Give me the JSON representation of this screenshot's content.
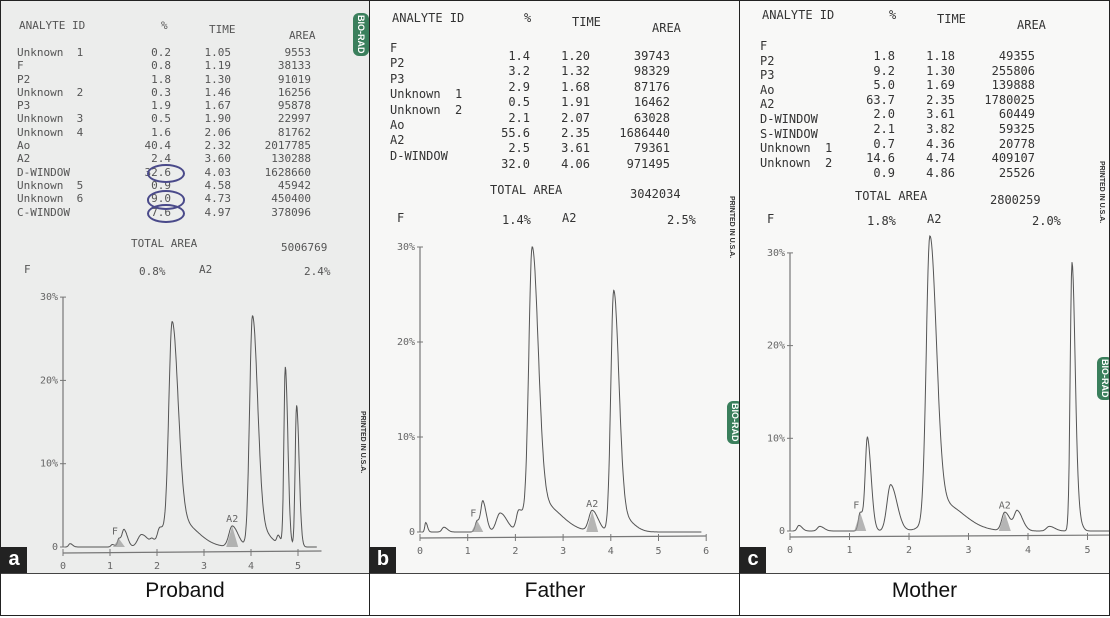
{
  "chart_data": [
    {
      "type": "line",
      "panel_letter": "a",
      "title": "Proband",
      "brand": "BIO-RAD",
      "printed": "PRINTED IN U.S.A.",
      "headers": {
        "analyte": "ANALYTE ID",
        "pct": "%",
        "time": "TIME",
        "area": "AREA"
      },
      "analyte_labels": [
        "Unknown  1",
        "F",
        "P2",
        "Unknown  2",
        "P3",
        "Unknown  3",
        "Unknown  4",
        "Ao",
        "A2",
        "D-WINDOW",
        "Unknown  5",
        "Unknown  6",
        "C-WINDOW"
      ],
      "rows": [
        {
          "pct": "0.2",
          "time": "1.05",
          "area": "9553"
        },
        {
          "pct": "0.8",
          "time": "1.19",
          "area": "38133"
        },
        {
          "pct": "1.8",
          "time": "1.30",
          "area": "91019"
        },
        {
          "pct": "0.3",
          "time": "1.46",
          "area": "16256"
        },
        {
          "pct": "1.9",
          "time": "1.67",
          "area": "95878"
        },
        {
          "pct": "0.5",
          "time": "1.90",
          "area": "22997"
        },
        {
          "pct": "1.6",
          "time": "2.06",
          "area": "81762"
        },
        {
          "pct": "40.4",
          "time": "2.32",
          "area": "2017785"
        },
        {
          "pct": "2.4",
          "time": "3.60",
          "area": "130288"
        },
        {
          "pct": "32.6",
          "time": "4.03",
          "area": "1628660"
        },
        {
          "pct": "0.9",
          "time": "4.58",
          "area": "45942"
        },
        {
          "pct": "9.0",
          "time": "4.73",
          "area": "450400"
        },
        {
          "pct": "7.6",
          "time": "4.97",
          "area": "378096"
        }
      ],
      "circled_rows": [
        9,
        11,
        12
      ],
      "total_area_label": "TOTAL AREA",
      "total_area": "5006769",
      "summary": {
        "f_label": "F",
        "f_value": "0.8%",
        "a2_label": "A2",
        "a2_value": "2.4%"
      },
      "y_ticks": [
        "0",
        "10%",
        "20%",
        "30%"
      ],
      "x_ticks": [
        "0",
        "1",
        "2",
        "3",
        "4",
        "5"
      ],
      "xlim": [
        0,
        5.5
      ],
      "ylim": [
        0,
        30
      ],
      "peak_labels": [
        {
          "text": "F",
          "time": 1.19
        },
        {
          "text": "A2",
          "time": 3.6
        }
      ],
      "peaks": [
        [
          0.15,
          0.4,
          0.03
        ],
        [
          1.05,
          0.3,
          0.03
        ],
        [
          1.19,
          1.0,
          0.03
        ],
        [
          1.3,
          2.0,
          0.04
        ],
        [
          1.67,
          1.5,
          0.08
        ],
        [
          1.9,
          0.6,
          0.04
        ],
        [
          2.06,
          2.0,
          0.05
        ],
        [
          2.32,
          25,
          0.07
        ],
        [
          2.5,
          3,
          0.2
        ],
        [
          3.6,
          2.5,
          0.07
        ],
        [
          4.03,
          27,
          0.06
        ],
        [
          4.2,
          2,
          0.12
        ],
        [
          4.58,
          1,
          0.03
        ],
        [
          4.73,
          21.5,
          0.03
        ],
        [
          4.97,
          17,
          0.03
        ]
      ]
    },
    {
      "type": "line",
      "panel_letter": "b",
      "title": "Father",
      "brand": "BIO-RAD",
      "printed": "PRINTED IN U.S.A.",
      "headers": {
        "analyte": "ANALYTE ID",
        "pct": "%",
        "time": "TIME",
        "area": "AREA"
      },
      "analyte_labels": [
        "F",
        "P2",
        "P3",
        "Unknown  1",
        "Unknown  2",
        "Ao",
        "A2",
        "D-WINDOW"
      ],
      "rows": [
        {
          "pct": "1.4",
          "time": "1.20",
          "area": "39743"
        },
        {
          "pct": "3.2",
          "time": "1.32",
          "area": "98329"
        },
        {
          "pct": "2.9",
          "time": "1.68",
          "area": "87176"
        },
        {
          "pct": "0.5",
          "time": "1.91",
          "area": "16462"
        },
        {
          "pct": "2.1",
          "time": "2.07",
          "area": "63028"
        },
        {
          "pct": "55.6",
          "time": "2.35",
          "area": "1686440"
        },
        {
          "pct": "2.5",
          "time": "3.61",
          "area": "79361"
        },
        {
          "pct": "32.0",
          "time": "4.06",
          "area": "971495"
        }
      ],
      "circled_rows": [],
      "total_area_label": "TOTAL AREA",
      "total_area": "3042034",
      "summary": {
        "f_label": "F",
        "f_value": "1.4%",
        "a2_label": "A2",
        "a2_value": "2.5%"
      },
      "y_ticks": [
        "0",
        "10%",
        "20%",
        "30%"
      ],
      "x_ticks": [
        "0",
        "1",
        "2",
        "3",
        "4",
        "5",
        "6"
      ],
      "xlim": [
        0,
        6
      ],
      "ylim": [
        0,
        30
      ],
      "peak_labels": [
        {
          "text": "F",
          "time": 1.2
        },
        {
          "text": "A2",
          "time": 3.61
        }
      ],
      "peaks": [
        [
          0.12,
          1.0,
          0.02
        ],
        [
          0.5,
          0.5,
          0.04
        ],
        [
          1.2,
          1.2,
          0.04
        ],
        [
          1.32,
          3.0,
          0.04
        ],
        [
          1.68,
          2.0,
          0.08
        ],
        [
          2.07,
          2.0,
          0.05
        ],
        [
          2.35,
          28,
          0.07
        ],
        [
          2.55,
          3,
          0.22
        ],
        [
          3.61,
          2.2,
          0.07
        ],
        [
          4.06,
          25,
          0.06
        ],
        [
          4.25,
          1.5,
          0.12
        ]
      ]
    },
    {
      "type": "line",
      "panel_letter": "c",
      "title": "Mother",
      "brand": "BIO-RAD",
      "printed": "PRINTED IN U.S.A.",
      "headers": {
        "analyte": "ANALYTE ID",
        "pct": "%",
        "time": "TIME",
        "area": "AREA"
      },
      "analyte_labels": [
        "F",
        "P2",
        "P3",
        "Ao",
        "A2",
        "D-WINDOW",
        "S-WINDOW",
        "Unknown  1",
        "Unknown  2"
      ],
      "rows": [
        {
          "pct": "1.8",
          "time": "1.18",
          "area": "49355"
        },
        {
          "pct": "9.2",
          "time": "1.30",
          "area": "255806"
        },
        {
          "pct": "5.0",
          "time": "1.69",
          "area": "139888"
        },
        {
          "pct": "63.7",
          "time": "2.35",
          "area": "1780025"
        },
        {
          "pct": "2.0",
          "time": "3.61",
          "area": "60449"
        },
        {
          "pct": "2.1",
          "time": "3.82",
          "area": "59325"
        },
        {
          "pct": "0.7",
          "time": "4.36",
          "area": "20778"
        },
        {
          "pct": "14.6",
          "time": "4.74",
          "area": "409107"
        },
        {
          "pct": "0.9",
          "time": "4.86",
          "area": "25526"
        }
      ],
      "circled_rows": [],
      "total_area_label": "TOTAL AREA",
      "total_area": "2800259",
      "summary": {
        "f_label": "F",
        "f_value": "1.8%",
        "a2_label": "A2",
        "a2_value": "2.0%"
      },
      "y_ticks": [
        "0",
        "10%",
        "20%",
        "30%"
      ],
      "x_ticks": [
        "0",
        "1",
        "2",
        "3",
        "4",
        "5"
      ],
      "xlim": [
        0,
        5.5
      ],
      "ylim": [
        0,
        30
      ],
      "peak_labels": [
        {
          "text": "F",
          "time": 1.18
        },
        {
          "text": "A2",
          "time": 3.61
        }
      ],
      "peaks": [
        [
          0.15,
          0.6,
          0.03
        ],
        [
          0.5,
          0.5,
          0.04
        ],
        [
          1.18,
          2.0,
          0.03
        ],
        [
          1.3,
          10,
          0.035
        ],
        [
          1.69,
          5,
          0.06
        ],
        [
          2.35,
          30,
          0.06
        ],
        [
          2.55,
          3,
          0.2
        ],
        [
          3.61,
          2.0,
          0.05
        ],
        [
          3.82,
          2.1,
          0.05
        ],
        [
          4.36,
          0.5,
          0.05
        ],
        [
          4.74,
          29,
          0.03
        ],
        [
          4.86,
          1,
          0.03
        ]
      ]
    }
  ]
}
